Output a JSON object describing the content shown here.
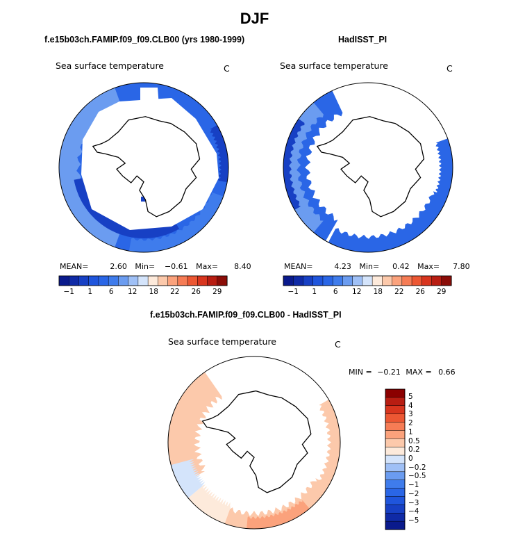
{
  "title": "DJF",
  "colors": {
    "land": "#ffffff",
    "outline": "#000000"
  },
  "chart_data": [
    {
      "type": "heatmap",
      "subtitle": "f.e15b03ch.FAMIP.f09_f09.CLB00 (yrs 1980-1999)",
      "variable": "Sea surface temperature",
      "units": "C",
      "stats": {
        "mean_label": "MEAN=",
        "mean": "2.60",
        "min_label": "Min=",
        "min": "−0.61",
        "max_label": "Max=",
        "max": "8.40"
      },
      "colorbar": {
        "colors": [
          "#0a1a8c",
          "#0f2aa6",
          "#1740c4",
          "#1f55dc",
          "#2a66e6",
          "#3f7cec",
          "#6b9cf0",
          "#9fc0f6",
          "#d4e4fb",
          "#fdeadb",
          "#fcc9ab",
          "#fba27c",
          "#f67c55",
          "#ec5733",
          "#d8351e",
          "#b81d12",
          "#8b0d08"
        ],
        "ticks": [
          "−1",
          "1",
          "6",
          "12",
          "18",
          "22",
          "26",
          "29"
        ]
      }
    },
    {
      "type": "heatmap",
      "subtitle": "HadISST_PI",
      "variable": "Sea surface temperature",
      "units": "C",
      "stats": {
        "mean_label": "MEAN=",
        "mean": "4.23",
        "min_label": "Min=",
        "min": "0.42",
        "max_label": "Max=",
        "max": "7.80"
      },
      "colorbar": {
        "colors": [
          "#0a1a8c",
          "#0f2aa6",
          "#1740c4",
          "#1f55dc",
          "#2a66e6",
          "#3f7cec",
          "#6b9cf0",
          "#9fc0f6",
          "#d4e4fb",
          "#fdeadb",
          "#fcc9ab",
          "#fba27c",
          "#f67c55",
          "#ec5733",
          "#d8351e",
          "#b81d12",
          "#8b0d08"
        ],
        "ticks": [
          "−1",
          "1",
          "6",
          "12",
          "18",
          "22",
          "26",
          "29"
        ]
      }
    },
    {
      "type": "heatmap",
      "subtitle": "f.e15b03ch.FAMIP.f09_f09.CLB00 - HadISST_PI",
      "variable": "Sea surface temperature",
      "units": "C",
      "stats": {
        "min_label": "MIN =",
        "min": "−0.21",
        "max_label": "MAX =",
        "max": "0.66"
      },
      "colorbar": {
        "colors": [
          "#8b0000",
          "#b81d12",
          "#d8351e",
          "#ec5733",
          "#f67c55",
          "#fba27c",
          "#fcc9ab",
          "#fdeadb",
          "#d4e4fb",
          "#9fc0f6",
          "#6b9cf0",
          "#3f7cec",
          "#2a66e6",
          "#1f55dc",
          "#1740c4",
          "#0f2aa6",
          "#0a1a8c"
        ],
        "labels": [
          "5",
          "4",
          "3",
          "2",
          "1",
          "0.5",
          "0.2",
          "0",
          "−0.2",
          "−0.5",
          "−1",
          "−2",
          "−3",
          "−4",
          "−5"
        ]
      }
    }
  ]
}
